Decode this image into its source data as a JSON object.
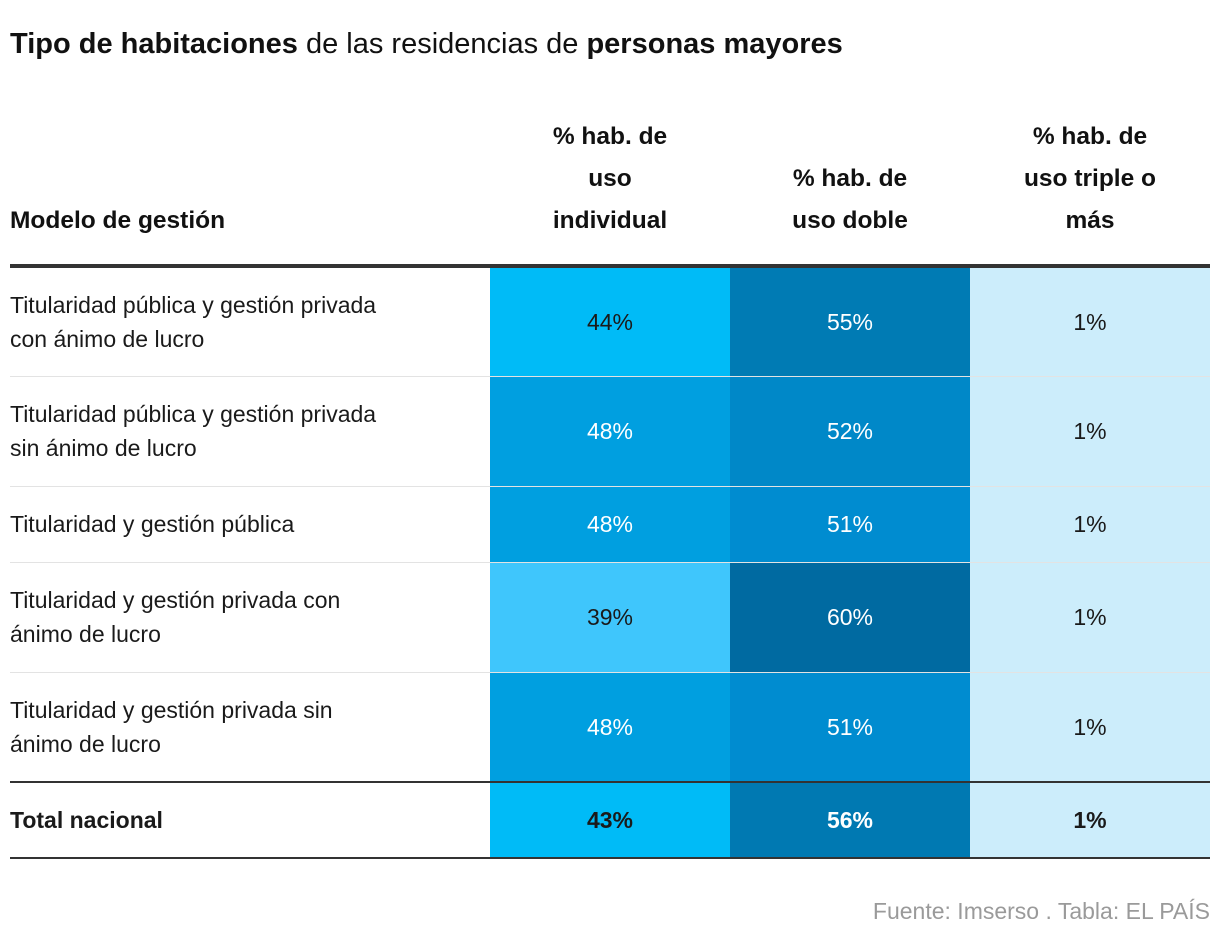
{
  "title": {
    "part1": "Tipo de habitaciones",
    "part2": " de las residencias de ",
    "part3": "personas mayores"
  },
  "source": "Fuente: Imserso . Tabla: EL PAÍS",
  "chart_data": {
    "type": "table",
    "columns": [
      {
        "label_lines": [
          "Modelo de gestión"
        ]
      },
      {
        "label_lines": [
          "% hab. de",
          "uso",
          "individual"
        ]
      },
      {
        "label_lines": [
          "% hab. de",
          "uso doble"
        ]
      },
      {
        "label_lines": [
          "% hab. de",
          "uso triple o",
          "más"
        ]
      }
    ],
    "rows": [
      {
        "label_lines": [
          "Titularidad pública y gestión privada",
          "con ánimo de lucro"
        ],
        "values": [
          44,
          55,
          1
        ],
        "labels": [
          "44%",
          "55%",
          "1%"
        ],
        "colors": [
          "#00bbf7",
          "#007bb4",
          "#ccedfb"
        ],
        "text_colors": [
          "#1a1a1a",
          "#ffffff",
          "#1a1a1a"
        ]
      },
      {
        "label_lines": [
          "Titularidad pública y gestión privada",
          "sin ánimo de lucro"
        ],
        "values": [
          48,
          52,
          1
        ],
        "labels": [
          "48%",
          "52%",
          "1%"
        ],
        "colors": [
          "#009fe0",
          "#0088c8",
          "#ccedfb"
        ],
        "text_colors": [
          "#ffffff",
          "#ffffff",
          "#1a1a1a"
        ]
      },
      {
        "label_lines": [
          "Titularidad y gestión pública"
        ],
        "values": [
          48,
          51,
          1
        ],
        "labels": [
          "48%",
          "51%",
          "1%"
        ],
        "colors": [
          "#009fe0",
          "#008cd0",
          "#ccedfb"
        ],
        "text_colors": [
          "#ffffff",
          "#ffffff",
          "#1a1a1a"
        ]
      },
      {
        "label_lines": [
          "Titularidad y gestión privada con",
          "ánimo de lucro"
        ],
        "values": [
          39,
          60,
          1
        ],
        "labels": [
          "39%",
          "60%",
          "1%"
        ],
        "colors": [
          "#3fc6fc",
          "#006aa1",
          "#ccedfb"
        ],
        "text_colors": [
          "#1a1a1a",
          "#ffffff",
          "#1a1a1a"
        ]
      },
      {
        "label_lines": [
          "Titularidad y gestión privada sin",
          "ánimo de lucro"
        ],
        "values": [
          48,
          51,
          1
        ],
        "labels": [
          "48%",
          "51%",
          "1%"
        ],
        "colors": [
          "#009fe0",
          "#008cd0",
          "#ccedfb"
        ],
        "text_colors": [
          "#ffffff",
          "#ffffff",
          "#1a1a1a"
        ]
      }
    ],
    "total": {
      "label": "Total nacional",
      "values": [
        43,
        56,
        1
      ],
      "labels": [
        "43%",
        "56%",
        "1%"
      ],
      "colors": [
        "#00bbf7",
        "#0079b2",
        "#ccedfb"
      ],
      "text_colors": [
        "#1a1a1a",
        "#ffffff",
        "#1a1a1a"
      ]
    }
  }
}
